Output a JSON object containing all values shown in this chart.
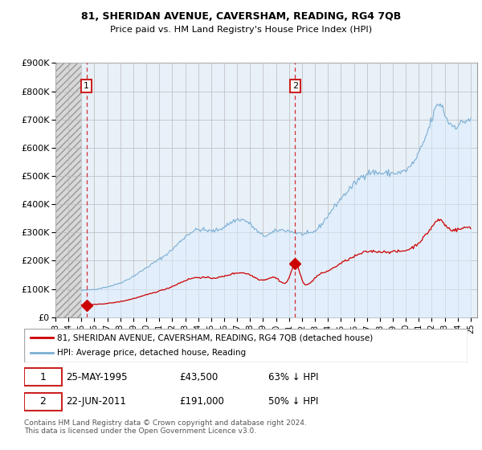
{
  "title1": "81, SHERIDAN AVENUE, CAVERSHAM, READING, RG4 7QB",
  "title2": "Price paid vs. HM Land Registry's House Price Index (HPI)",
  "ylim": [
    0,
    900000
  ],
  "xlim_start": 1993.0,
  "xlim_end": 2025.5,
  "hatch_end": 1995.0,
  "sale1_date": 1995.39,
  "sale1_price": 43500,
  "sale1_label": "1",
  "sale2_date": 2011.47,
  "sale2_price": 191000,
  "sale2_label": "2",
  "red_line_color": "#cc0000",
  "blue_line_color": "#7bafd4",
  "blue_fill_color": "#ddeeff",
  "hatch_bg": "#e0e0e0",
  "grid_color": "#bbbbbb",
  "annotation_box_color": "#cc2222",
  "plot_bg_color": "#e8f0f8",
  "legend_label1": "81, SHERIDAN AVENUE, CAVERSHAM, READING, RG4 7QB (detached house)",
  "legend_label2": "HPI: Average price, detached house, Reading",
  "note1_label": "1",
  "note1_date": "25-MAY-1995",
  "note1_price": "£43,500",
  "note1_pct": "63% ↓ HPI",
  "note2_label": "2",
  "note2_date": "22-JUN-2011",
  "note2_price": "£191,000",
  "note2_pct": "50% ↓ HPI",
  "copyright": "Contains HM Land Registry data © Crown copyright and database right 2024.\nThis data is licensed under the Open Government Licence v3.0."
}
